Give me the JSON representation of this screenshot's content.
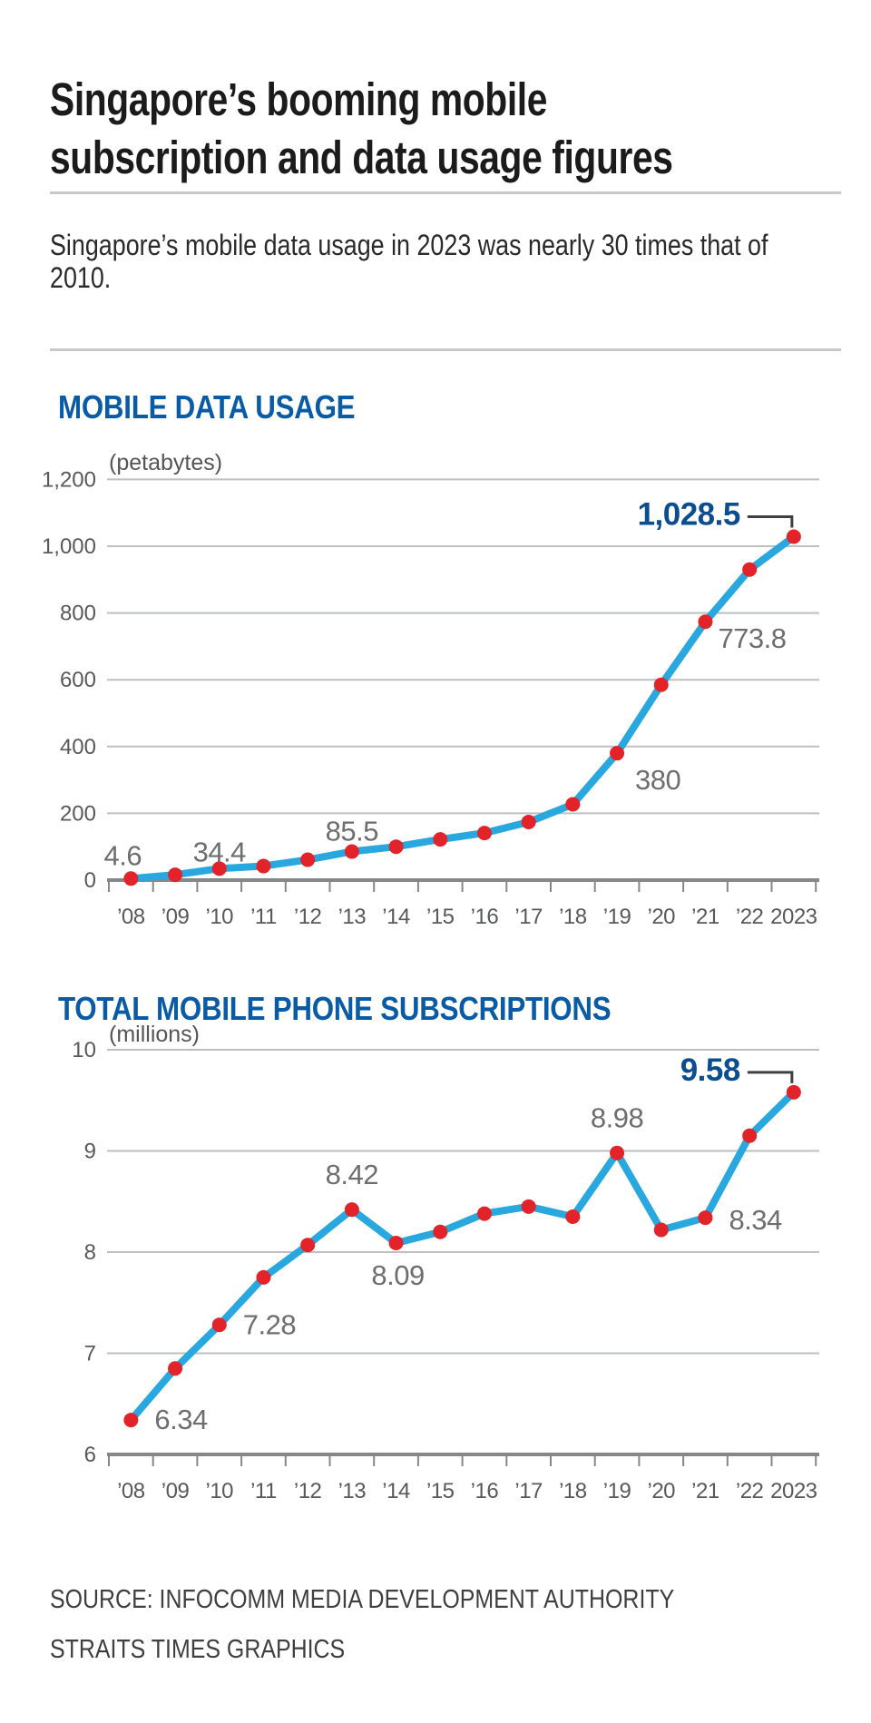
{
  "title": {
    "line1": "Singapore’s booming mobile",
    "line2": "subscription and data usage figures"
  },
  "subtitle": "Singapore’s mobile data usage in 2023 was nearly 30 times that of 2010.",
  "source": {
    "line1": "SOURCE: INFOCOMM MEDIA DEVELOPMENT AUTHORITY",
    "line2": "STRAITS TIMES GRAPHICS"
  },
  "colors": {
    "line": "#29a8df",
    "dot": "#e2232a",
    "heading_blue": "#0a5ba6",
    "emphasis_label": "#0c4d8f",
    "grid": "#bdbfc1",
    "axis": "#85878a",
    "label_gray": "#6d6e70",
    "axis_text": "#58595b",
    "unit_text": "#555557",
    "connector": "#404041"
  },
  "chart_data": [
    {
      "type": "line",
      "title": "MOBILE DATA USAGE",
      "unit_label": "(petabytes)",
      "categories": [
        "’08",
        "’09",
        "’10",
        "’11",
        "’12",
        "’13",
        "’14",
        "’15",
        "’16",
        "’17",
        "’18",
        "’19",
        "’20",
        "’21",
        "’22",
        "2023"
      ],
      "values": [
        4.6,
        16,
        34.4,
        42,
        61,
        85.5,
        100,
        122,
        141,
        174,
        227,
        380,
        585,
        773.8,
        930,
        1028.5
      ],
      "ylim": [
        0,
        1200
      ],
      "yticks": [
        0,
        200,
        400,
        600,
        800,
        1000,
        1200
      ],
      "ytick_labels": [
        "0",
        "200",
        "400",
        "600",
        "800",
        "1,000",
        "1,200"
      ],
      "grid": true,
      "legend": "none",
      "point_labels": [
        {
          "index": 0,
          "text": "4.6",
          "emphasis": false
        },
        {
          "index": 2,
          "text": "34.4",
          "emphasis": false
        },
        {
          "index": 5,
          "text": "85.5",
          "emphasis": false
        },
        {
          "index": 11,
          "text": "380",
          "emphasis": false
        },
        {
          "index": 13,
          "text": "773.8",
          "emphasis": false
        },
        {
          "index": 15,
          "text": "1,028.5",
          "emphasis": true
        }
      ]
    },
    {
      "type": "line",
      "title": "TOTAL MOBILE PHONE SUBSCRIPTIONS",
      "unit_label": "(millions)",
      "categories": [
        "’08",
        "’09",
        "’10",
        "’11",
        "’12",
        "’13",
        "’14",
        "’15",
        "’16",
        "’17",
        "’18",
        "’19",
        "’20",
        "’21",
        "’22",
        "2023"
      ],
      "values": [
        6.34,
        6.85,
        7.28,
        7.75,
        8.07,
        8.42,
        8.09,
        8.2,
        8.38,
        8.45,
        8.35,
        8.98,
        8.22,
        8.34,
        9.15,
        9.58
      ],
      "ylim": [
        6,
        10
      ],
      "yticks": [
        6,
        7,
        8,
        9,
        10
      ],
      "ytick_labels": [
        "6",
        "7",
        "8",
        "9",
        "10"
      ],
      "grid": true,
      "legend": "none",
      "point_labels": [
        {
          "index": 0,
          "text": "6.34",
          "emphasis": false
        },
        {
          "index": 2,
          "text": "7.28",
          "emphasis": false
        },
        {
          "index": 5,
          "text": "8.42",
          "emphasis": false
        },
        {
          "index": 6,
          "text": "8.09",
          "emphasis": false
        },
        {
          "index": 11,
          "text": "8.98",
          "emphasis": false
        },
        {
          "index": 13,
          "text": "8.34",
          "emphasis": false
        },
        {
          "index": 15,
          "text": "9.58",
          "emphasis": true
        }
      ]
    }
  ]
}
